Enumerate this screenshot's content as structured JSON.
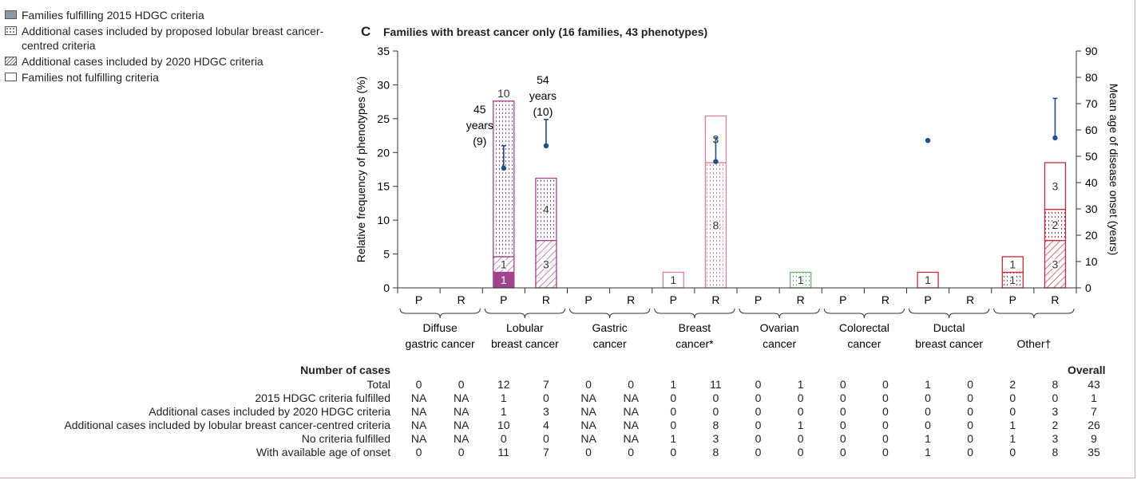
{
  "legend": [
    {
      "label": "Families fulfilling 2015 HDGC criteria",
      "style": "solid"
    },
    {
      "label": "Additional cases included by proposed lobular breast cancer-centred criteria",
      "style": "dotted"
    },
    {
      "label": "Additional cases included by 2020 HDGC criteria",
      "style": "hatched"
    },
    {
      "label": "Families not fulfilling criteria",
      "style": "empty"
    }
  ],
  "panel": {
    "letter": "C",
    "title": "Families with breast cancer only (16 families, 43 phenotypes)"
  },
  "chart_data": {
    "type": "bar",
    "stacked": true,
    "y_left": {
      "label": "Relative frequency of phenotypes (%)",
      "ylim": [
        0,
        35
      ],
      "ticks": [
        0,
        5,
        10,
        15,
        20,
        25,
        30,
        35
      ]
    },
    "y_right": {
      "label": "Mean age of disease onset (years)",
      "ylim": [
        0,
        90
      ],
      "ticks": [
        0,
        10,
        20,
        30,
        40,
        50,
        60,
        70,
        80,
        90
      ]
    },
    "groups": [
      "Diffuse gastric cancer",
      "Lobular breast cancer",
      "Gastric cancer",
      "Breast cancer*",
      "Ovarian cancer",
      "Colorectal cancer",
      "Ductal breast cancer",
      "Other†"
    ],
    "group_colors": [
      "#9a9a9a",
      "#a0458c",
      "#9a9a9a",
      "#e07ea0",
      "#6cb86c",
      "#9a9a9a",
      "#c82a3c",
      "#c82a3c"
    ],
    "subcategories": [
      "P",
      "R"
    ],
    "bars": [
      {
        "group": 1,
        "sub": "P",
        "segments": [
          {
            "type": "solid",
            "pct": 2.3,
            "n": "1"
          },
          {
            "type": "hatched",
            "pct": 2.3,
            "n": "1"
          },
          {
            "type": "dotted",
            "pct": 23.0,
            "n": "10"
          }
        ],
        "label_above": true
      },
      {
        "group": 1,
        "sub": "R",
        "segments": [
          {
            "type": "hatched",
            "pct": 7.0,
            "n": "3"
          },
          {
            "type": "dotted",
            "pct": 9.2,
            "n": "4"
          }
        ]
      },
      {
        "group": 3,
        "sub": "P",
        "segments": [
          {
            "type": "empty",
            "pct": 2.3,
            "n": "1"
          }
        ],
        "label_right": true
      },
      {
        "group": 3,
        "sub": "R",
        "segments": [
          {
            "type": "dotted",
            "pct": 18.5,
            "n": "8"
          },
          {
            "type": "empty",
            "pct": 6.9,
            "n": "3"
          }
        ]
      },
      {
        "group": 4,
        "sub": "R",
        "segments": [
          {
            "type": "dotted",
            "pct": 2.3,
            "n": "1"
          }
        ]
      },
      {
        "group": 6,
        "sub": "P",
        "segments": [
          {
            "type": "empty",
            "pct": 2.3,
            "n": "1"
          }
        ]
      },
      {
        "group": 7,
        "sub": "P",
        "segments": [
          {
            "type": "dotted",
            "pct": 2.3,
            "n": "1"
          },
          {
            "type": "empty",
            "pct": 2.3,
            "n": "1"
          }
        ]
      },
      {
        "group": 7,
        "sub": "R",
        "segments": [
          {
            "type": "hatched",
            "pct": 7.0,
            "n": "3"
          },
          {
            "type": "dotted",
            "pct": 4.6,
            "n": "2"
          },
          {
            "type": "empty",
            "pct": 6.9,
            "n": "3"
          }
        ]
      }
    ],
    "age_points": [
      {
        "group": 1,
        "sub": "P",
        "mean": 45.5,
        "upper": 54,
        "note": [
          "45",
          "years",
          "(9)"
        ]
      },
      {
        "group": 1,
        "sub": "R",
        "mean": 54,
        "upper": 64,
        "note": [
          "54",
          "years",
          "(10)"
        ]
      },
      {
        "group": 3,
        "sub": "R",
        "mean": 48,
        "upper": 57
      },
      {
        "group": 6,
        "sub": "P",
        "mean": 56
      },
      {
        "group": 7,
        "sub": "R",
        "mean": 57,
        "upper": 72
      }
    ]
  },
  "table": {
    "heading": "Number of cases",
    "overall_heading": "Overall",
    "rows": [
      {
        "label": "Total",
        "values": [
          "0",
          "0",
          "12",
          "7",
          "0",
          "0",
          "1",
          "11",
          "0",
          "1",
          "0",
          "0",
          "1",
          "0",
          "2",
          "8"
        ],
        "overall": "43"
      },
      {
        "label": "2015 HDGC criteria fulfilled",
        "values": [
          "NA",
          "NA",
          "1",
          "0",
          "NA",
          "NA",
          "0",
          "0",
          "0",
          "0",
          "0",
          "0",
          "0",
          "0",
          "0",
          "0"
        ],
        "overall": "1"
      },
      {
        "label": "Additional cases included by 2020 HDGC criteria",
        "values": [
          "NA",
          "NA",
          "1",
          "3",
          "NA",
          "NA",
          "0",
          "0",
          "0",
          "0",
          "0",
          "0",
          "0",
          "0",
          "0",
          "3"
        ],
        "overall": "7"
      },
      {
        "label": "Additional cases included by lobular breast cancer-centred criteria",
        "values": [
          "NA",
          "NA",
          "10",
          "4",
          "NA",
          "NA",
          "0",
          "8",
          "0",
          "1",
          "0",
          "0",
          "0",
          "0",
          "1",
          "2"
        ],
        "overall": "26"
      },
      {
        "label": "No criteria fulfilled",
        "values": [
          "NA",
          "NA",
          "0",
          "0",
          "NA",
          "NA",
          "1",
          "3",
          "0",
          "0",
          "0",
          "0",
          "1",
          "0",
          "1",
          "3"
        ],
        "overall": "9"
      },
      {
        "label": "With available age of onset",
        "values": [
          "0",
          "0",
          "11",
          "7",
          "0",
          "0",
          "0",
          "8",
          "0",
          "0",
          "0",
          "0",
          "1",
          "0",
          "0",
          "8"
        ],
        "overall": "35"
      }
    ]
  }
}
